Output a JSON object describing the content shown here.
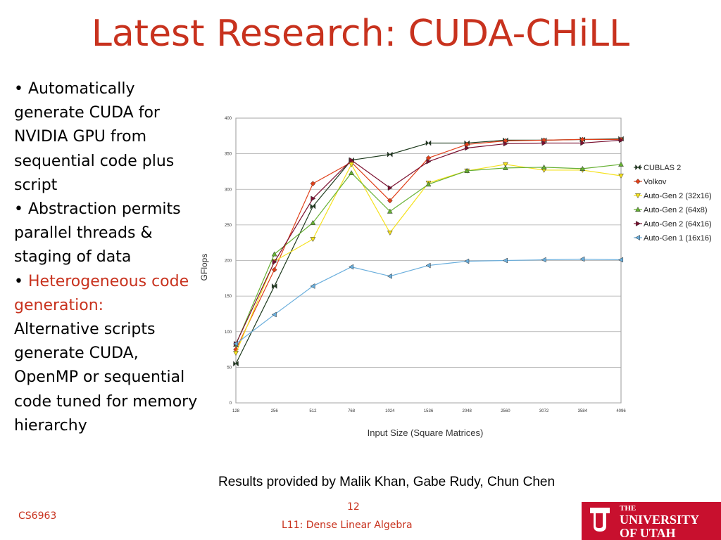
{
  "slide": {
    "title": "Latest Research: CUDA-CHiLL",
    "bullets": [
      {
        "marker": "•",
        "text": "Automatically generate CUDA for NVIDIA GPU from sequential code plus script"
      },
      {
        "marker": "•",
        "text": "Abstraction permits parallel threads & staging of data"
      },
      {
        "marker": "•",
        "highlight": "Heterogeneous code generation:",
        "text": "Alternative scripts generate CUDA, OpenMP or sequential code tuned for memory hierarchy"
      }
    ],
    "caption": "Results provided by Malik Khan, Gabe Rudy, Chun Chen",
    "course": "CS6963",
    "page_number": "12",
    "lecture": "L11: Dense Linear Algebra",
    "logo": [
      "THE",
      "UNIVERSITY",
      "OF UTAH"
    ]
  },
  "chart_data": {
    "type": "line",
    "x_label": "Input Size (Square Matrices)",
    "y_label": "GFlops",
    "categories": [
      "128",
      "256",
      "512",
      "768",
      "1024",
      "1536",
      "2048",
      "2560",
      "3072",
      "3584",
      "4096"
    ],
    "ylim": [
      0,
      400
    ],
    "yticks": [
      0,
      50,
      100,
      150,
      200,
      250,
      300,
      350,
      400
    ],
    "grid": true,
    "legend": "right",
    "series": [
      {
        "name": "CUBLAS 2",
        "color": "#1e3b1e",
        "marker": "bowtie",
        "values": [
          55,
          164,
          276,
          341,
          349,
          365,
          365,
          369,
          369,
          370,
          371
        ]
      },
      {
        "name": "Volkov",
        "color": "#e0401a",
        "marker": "diamond",
        "values": [
          75,
          187,
          308,
          338,
          284,
          344,
          363,
          368,
          369,
          370,
          370
        ]
      },
      {
        "name": "Auto-Gen 2 (32x16)",
        "color": "#f5e11c",
        "marker": "down",
        "values": [
          70,
          199,
          230,
          335,
          239,
          309,
          326,
          335,
          327,
          327,
          319
        ]
      },
      {
        "name": "Auto-Gen 2 (64x8)",
        "color": "#66b033",
        "marker": "up",
        "values": [
          82,
          209,
          253,
          323,
          269,
          307,
          326,
          330,
          331,
          329,
          335
        ]
      },
      {
        "name": "Auto-Gen 2 (64x16)",
        "color": "#7a1030",
        "marker": "right",
        "values": [
          83,
          198,
          287,
          341,
          302,
          339,
          358,
          364,
          365,
          365,
          369
        ]
      },
      {
        "name": "Auto-Gen 1 (16x16)",
        "color": "#6aaedc",
        "marker": "left",
        "values": [
          83,
          124,
          164,
          191,
          178,
          193,
          199,
          200,
          201,
          202,
          201
        ]
      }
    ]
  }
}
